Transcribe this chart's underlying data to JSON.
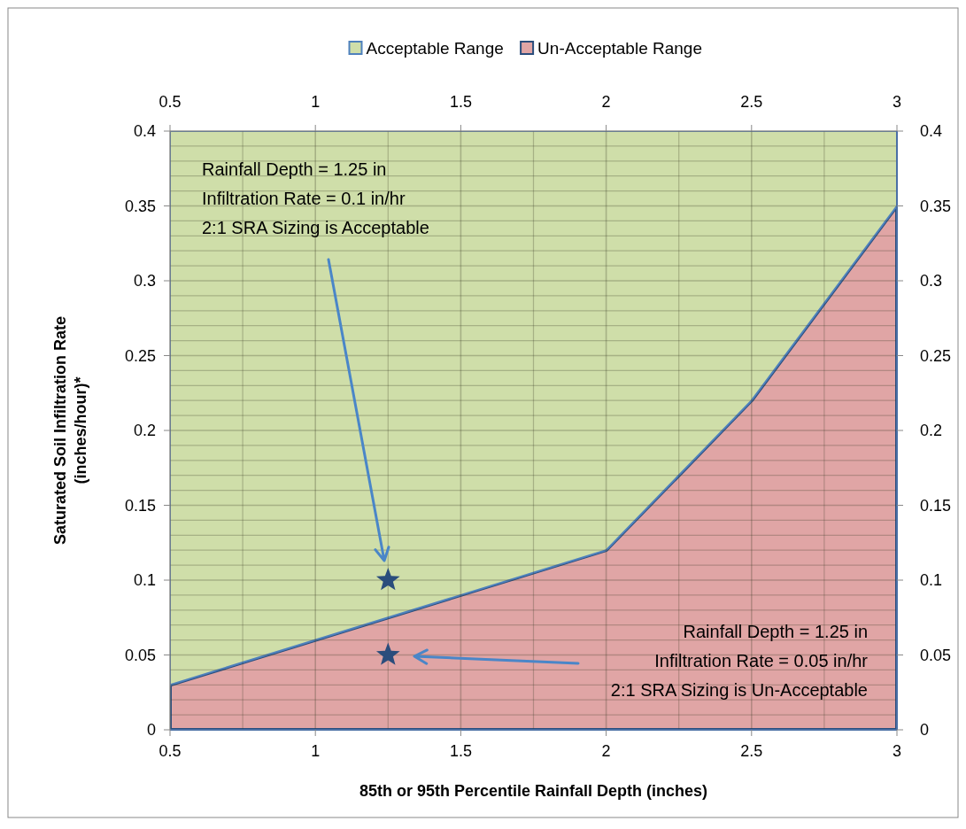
{
  "chart_data": {
    "type": "area",
    "xlabel": "85th or 95th Percentile Rainfall Depth (inches)",
    "ylabel": "Saturated Soil Infiltration Rate (inches/hour)*",
    "xlim": [
      0.5,
      3
    ],
    "xticks": [
      0.5,
      {
        "value": 0.75,
        "label": null
      },
      1,
      {
        "value": 1.25,
        "label": null
      },
      1.5,
      {
        "value": 1.75,
        "label": null
      },
      2,
      {
        "value": 2.25,
        "label": null
      },
      2.5,
      {
        "value": 2.75,
        "label": null
      },
      3
    ],
    "x2lim": [
      0.5,
      3
    ],
    "x2ticks": [
      0.5,
      1,
      1.5,
      2,
      2.5,
      3
    ],
    "ylim": [
      0,
      0.4
    ],
    "yticks": [
      0,
      {
        "value": 0.01,
        "label": null
      },
      {
        "value": 0.02,
        "label": null
      },
      {
        "value": 0.03,
        "label": null
      },
      {
        "value": 0.04,
        "label": null
      },
      0.05,
      {
        "value": 0.06,
        "label": null
      },
      {
        "value": 0.07,
        "label": null
      },
      {
        "value": 0.08,
        "label": null
      },
      {
        "value": 0.09,
        "label": null
      },
      0.1,
      {
        "value": 0.11,
        "label": null
      },
      {
        "value": 0.12,
        "label": null
      },
      {
        "value": 0.13,
        "label": null
      },
      {
        "value": 0.14,
        "label": null
      },
      0.15,
      {
        "value": 0.16,
        "label": null
      },
      {
        "value": 0.17,
        "label": null
      },
      {
        "value": 0.18,
        "label": null
      },
      {
        "value": 0.19,
        "label": null
      },
      0.2,
      {
        "value": 0.21,
        "label": null
      },
      {
        "value": 0.22,
        "label": null
      },
      {
        "value": 0.23,
        "label": null
      },
      {
        "value": 0.24,
        "label": null
      },
      0.25,
      {
        "value": 0.26,
        "label": null
      },
      {
        "value": 0.27,
        "label": null
      },
      {
        "value": 0.28,
        "label": null
      },
      {
        "value": 0.29,
        "label": null
      },
      0.3,
      {
        "value": 0.31,
        "label": null
      },
      {
        "value": 0.32,
        "label": null
      },
      {
        "value": 0.33,
        "label": null
      },
      {
        "value": 0.34,
        "label": null
      },
      0.35,
      {
        "value": 0.36,
        "label": null
      },
      {
        "value": 0.37,
        "label": null
      },
      {
        "value": 0.38,
        "label": null
      },
      {
        "value": 0.39,
        "label": null
      },
      0.4
    ],
    "y2lim": [
      0,
      0.4
    ],
    "y2ticks": [
      0,
      0.05,
      0.1,
      0.15,
      0.2,
      0.25,
      0.3,
      0.35,
      0.4
    ],
    "grid": true,
    "legend": "top",
    "stacked": true,
    "series": [
      {
        "name": "Un-Acceptable Range",
        "color": "#e0a5a5",
        "x": [
          0.5,
          2,
          2.5,
          3
        ],
        "values": [
          0.03,
          0.12,
          0.22,
          0.35
        ]
      },
      {
        "name": "Acceptable Range",
        "color": "#cfdea9",
        "x": [
          0.5,
          2,
          2.5,
          3
        ],
        "values": [
          0.37,
          0.28,
          0.18,
          0.05
        ]
      },
      {
        "type": "scatter",
        "marker": "star",
        "color": "#2a4d7c",
        "x": [
          1.25,
          1.25
        ],
        "values": [
          0.1,
          0.05
        ]
      }
    ],
    "annotations": [
      "Rainfall Depth = 1.25 in\nInfiltration Rate = 0.1 in/hr\n2:1 SRA Sizing is Acceptable",
      "Rainfall Depth = 1.25 in\nInfiltration Rate = 0.05 in/hr\n2:1 SRA Sizing is Un-Acceptable"
    ]
  }
}
